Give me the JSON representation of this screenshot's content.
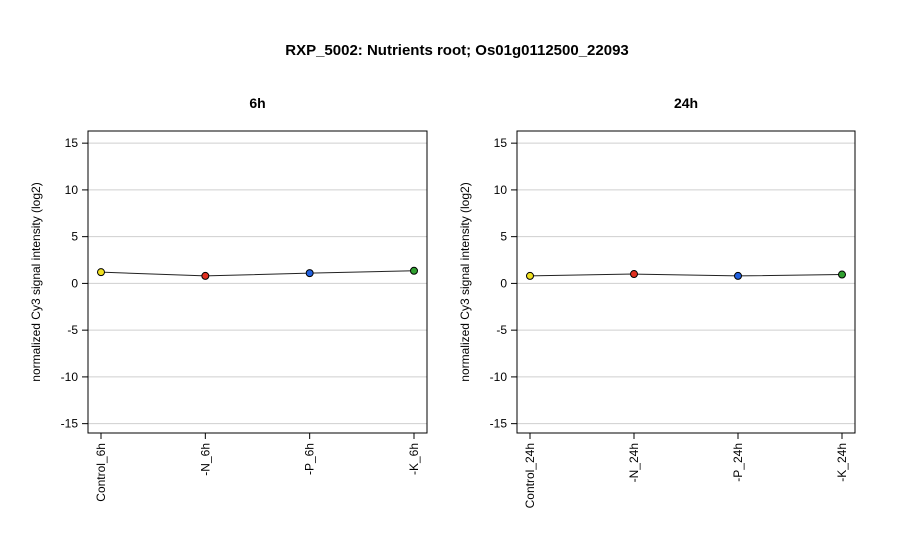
{
  "title": "RXP_5002: Nutrients root; Os01g0112500_22093",
  "chart_data": [
    {
      "type": "line",
      "title": "6h",
      "ylabel": "normalized Cy3 signal intensity (log2)",
      "xlabel": "",
      "ylim": [
        -16,
        16.3
      ],
      "yticks": [
        15,
        10,
        5,
        0,
        -5,
        -10,
        -15
      ],
      "grid": true,
      "categories": [
        "Control_6h",
        "-N_6h",
        "-P_6h",
        "-K_6h"
      ],
      "values": [
        1.2,
        0.8,
        1.1,
        1.35
      ],
      "point_colors": [
        "#f0e020",
        "#e03020",
        "#2060e0",
        "#30a030"
      ]
    },
    {
      "type": "line",
      "title": "24h",
      "ylabel": "normalized Cy3 signal intensity (log2)",
      "xlabel": "",
      "ylim": [
        -16,
        16.3
      ],
      "yticks": [
        15,
        10,
        5,
        0,
        -5,
        -10,
        -15
      ],
      "grid": true,
      "categories": [
        "Control_24h",
        "-N_24h",
        "-P_24h",
        "-K_24h"
      ],
      "values": [
        0.8,
        1.0,
        0.8,
        0.95
      ],
      "point_colors": [
        "#f0e020",
        "#e03020",
        "#2060e0",
        "#30a030"
      ]
    }
  ]
}
